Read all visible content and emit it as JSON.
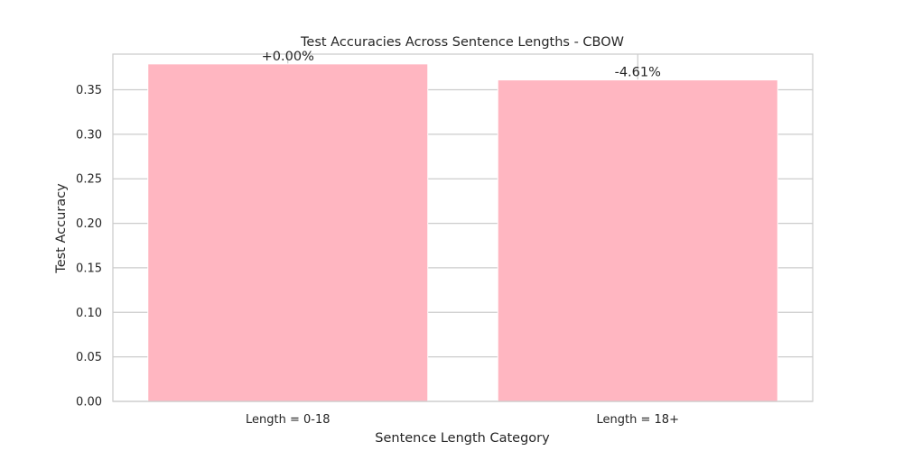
{
  "chart_data": {
    "type": "bar",
    "title": "Test Accuracies Across Sentence Lengths - CBOW",
    "xlabel": "Sentence Length Category",
    "ylabel": "Test Accuracy",
    "categories": [
      "Length = 0-18",
      "Length = 18+"
    ],
    "values": [
      0.379,
      0.361
    ],
    "data_labels": [
      "+0.00%",
      "-4.61%"
    ],
    "ylim": [
      0,
      0.39
    ],
    "yticks": [
      0.0,
      0.05,
      0.1,
      0.15,
      0.2,
      0.25,
      0.3,
      0.35
    ],
    "ytick_labels": [
      "0.00",
      "0.05",
      "0.10",
      "0.15",
      "0.20",
      "0.25",
      "0.30",
      "0.35"
    ],
    "grid": true,
    "bar_color": "#ffb6c1",
    "grid_color": "#cccccc",
    "axes_color": "#cccccc",
    "text_color": "#262626"
  }
}
